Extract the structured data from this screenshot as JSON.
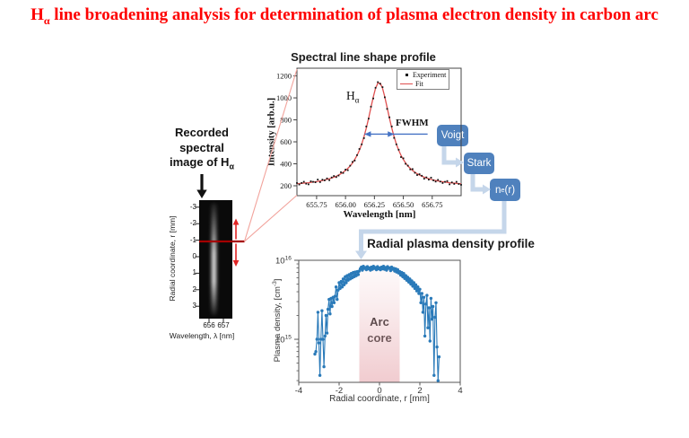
{
  "page": {
    "title_pre": "H",
    "title_sub": "α",
    "title_rest": " line broadening analysis for determination of plasma electron density in carbon arc",
    "title_color": "#fe0000",
    "background": "#ffffff"
  },
  "left_panel": {
    "caption_line1": "Recorded",
    "caption_line2": "spectral",
    "caption_line3_pre": "image of H",
    "caption_line3_sub": "α",
    "strip_ylabel": "Radial coordinate, r [mm]",
    "strip_yticks": [
      "-3",
      "-2",
      "-1",
      "0",
      "1",
      "2",
      "3"
    ],
    "strip_xticks": [
      "656",
      "657"
    ],
    "strip_xlabel": "Wavelength, λ [nm]"
  },
  "flow": {
    "boxes": [
      {
        "label": "Voigt"
      },
      {
        "label": "Stark"
      },
      {
        "label_pre": "n",
        "label_sub": "e",
        "label_post": "(r)"
      }
    ],
    "box_color": "#4f81bd",
    "arrow_color": "#c5d6ea"
  },
  "decor": {
    "black_arrow": "#111111",
    "red_line": "#a40000",
    "red_arrow": "#e02424",
    "pink_line": "#f2a39c"
  },
  "chart_data": [
    {
      "type": "line",
      "title": "Spectral line shape profile",
      "xlabel": "Wavelength [nm]",
      "ylabel": "Intensity [arb.u.]",
      "xlim": [
        655.58,
        657.0
      ],
      "ylim": [
        110,
        1270
      ],
      "xticks": [
        655.75,
        656.0,
        656.25,
        656.5,
        656.75
      ],
      "xtick_labels": [
        "655.75",
        "656.00",
        "656.25",
        "656.50",
        "656.75"
      ],
      "yticks": [
        200,
        400,
        600,
        800,
        1000,
        1200
      ],
      "ytick_labels": [
        "200",
        "400",
        "600",
        "800",
        "1000",
        "1200"
      ],
      "legend": [
        "Experiment",
        "Fit"
      ],
      "legend_position": "top-right",
      "annotation_peak_pre": "H",
      "annotation_peak_sub": "α",
      "annotation_fwhm": "FWHM",
      "x_start": 655.58,
      "x_step": 0.02,
      "experiment": [
        225,
        211,
        226,
        237,
        219,
        213,
        241,
        236,
        232,
        256,
        233,
        255,
        250,
        267,
        251,
        276,
        289,
        279,
        293,
        323,
        317,
        347,
        342,
        383,
        417,
        429,
        479,
        535,
        577,
        634,
        740,
        811,
        920,
        995,
        1092,
        1143,
        1128,
        1098,
        1005,
        900,
        823,
        740,
        636,
        577,
        528,
        461,
        450,
        400,
        383,
        349,
        352,
        318,
        298,
        305,
        291,
        264,
        277,
        256,
        274,
        250,
        238,
        254,
        238,
        225,
        236,
        243,
        213,
        231,
        217,
        236,
        216,
        209
      ],
      "fit": [
        219,
        220,
        222,
        224,
        226,
        228,
        231,
        234,
        237,
        240,
        244,
        248,
        253,
        258,
        264,
        271,
        278,
        287,
        297,
        309,
        323,
        339,
        358,
        380,
        407,
        439,
        477,
        523,
        579,
        646,
        725,
        816,
        913,
        1009,
        1088,
        1134,
        1134,
        1088,
        1009,
        913,
        816,
        725,
        646,
        579,
        523,
        477,
        439,
        407,
        380,
        358,
        339,
        323,
        309,
        297,
        287,
        278,
        271,
        264,
        258,
        253,
        248,
        244,
        240,
        237,
        234,
        231,
        228,
        226,
        224,
        222,
        220,
        218
      ],
      "peak_wavelength_nm": 656.29,
      "fwhm_arrow": {
        "x1": 656.165,
        "x2": 656.42,
        "tail_x": 656.71,
        "y": 670
      },
      "marker_color": "#141414",
      "fit_color": "#e05050",
      "fwhm_color": "#4472c4",
      "frame_color": "#444444"
    },
    {
      "type": "line",
      "title": "Radial plasma density profile",
      "xlabel": "Radial coordinate, r [mm]",
      "ylabel_pre": "Plasma density, [cm",
      "ylabel_sup": "-3",
      "ylabel_post": "]",
      "xlim": [
        -4,
        4
      ],
      "xticks": [
        -4,
        -2,
        0,
        2,
        4
      ],
      "xtick_labels": [
        "-4",
        "-2",
        "0",
        "2",
        "4"
      ],
      "ylog": true,
      "ylim_exponents": [
        14.455,
        16
      ],
      "ytick_exponents": [
        15,
        16
      ],
      "r_start": -3.2,
      "r_step": 0.05,
      "values_e15": [
        0.65,
        0.7,
        1.0,
        2.2,
        0.9,
        0.35,
        1.0,
        2.3,
        1.0,
        0.45,
        1.1,
        2.0,
        1.2,
        2.4,
        3.2,
        2.1,
        3.3,
        2.6,
        3.4,
        2.9,
        3.5,
        4.6,
        3.2,
        4.2,
        5.2,
        4.4,
        5.4,
        4.6,
        5.8,
        4.9,
        6.2,
        5.2,
        6.4,
        5.6,
        6.6,
        5.8,
        6.8,
        6.0,
        7.0,
        6.2,
        7.1,
        6.4,
        7.2,
        6.6,
        7.3,
        7.8,
        8.2,
        7.5,
        8.4,
        7.9,
        8.1,
        7.6,
        8.3,
        7.8,
        8.0,
        7.5,
        8.2,
        7.7,
        8.4,
        7.9,
        8.1,
        7.6,
        8.3,
        7.8,
        8.0,
        7.6,
        8.2,
        7.8,
        8.4,
        7.7,
        8.1,
        7.5,
        8.3,
        7.9,
        8.0,
        7.4,
        8.2,
        7.7,
        7.9,
        7.3,
        7.8,
        7.1,
        7.6,
        6.9,
        7.2,
        6.5,
        7.0,
        6.2,
        6.8,
        5.9,
        6.4,
        5.6,
        6.1,
        5.3,
        5.8,
        5.0,
        5.5,
        4.7,
        5.2,
        4.4,
        4.9,
        4.1,
        4.6,
        3.8,
        4.3,
        2.9,
        3.8,
        2.2,
        3.4,
        1.1,
        2.8,
        3.6,
        1.4,
        2.5,
        0.95,
        3.3,
        1.8,
        2.6,
        0.35,
        1.9,
        2.9,
        0.8,
        0.3,
        0.6
      ],
      "line_color": "#2a7ab9",
      "frame_color": "#555555",
      "band": {
        "x1": -1,
        "x2": 1,
        "label_line1": "Arc",
        "label_line2": "core",
        "color": "#e9b0b6"
      }
    }
  ]
}
